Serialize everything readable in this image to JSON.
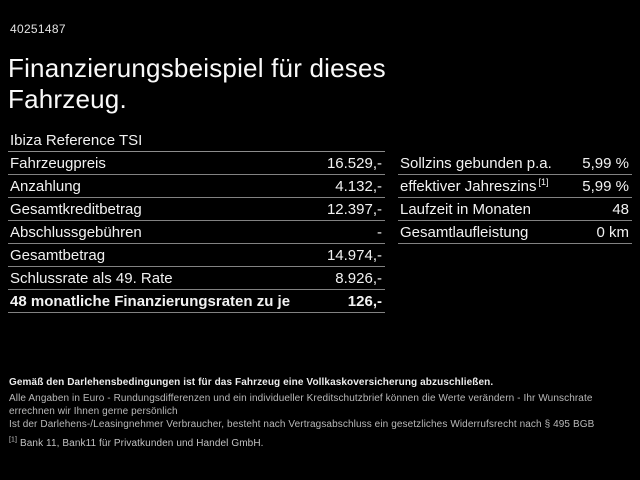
{
  "header": {
    "reference_number": "40251487",
    "title_line1": "Finanzierungsbeispiel für dieses",
    "title_line2": "Fahrzeug."
  },
  "left_table": {
    "header": "Ibiza Reference TSI",
    "rows": [
      {
        "label": "Fahrzeugpreis",
        "value": "16.529,-",
        "bold": false
      },
      {
        "label": "Anzahlung",
        "value": "4.132,-",
        "bold": false
      },
      {
        "label": "Gesamtkreditbetrag",
        "value": "12.397,-",
        "bold": false
      },
      {
        "label": "Abschlussgebühren",
        "value": "-",
        "bold": false
      },
      {
        "label": "Gesamtbetrag",
        "value": "14.974,-",
        "bold": false
      },
      {
        "label": "Schlussrate als 49. Rate",
        "value": "8.926,-",
        "bold": false
      },
      {
        "label": "48 monatliche Finanzierungsraten zu je",
        "value": "126,-",
        "bold": true
      }
    ]
  },
  "right_table": {
    "rows": [
      {
        "label": "Sollzins gebunden p.a.",
        "value": "5,99 %",
        "bold": false
      },
      {
        "label": "effektiver Jahreszins",
        "sup": "[1]",
        "value": "5,99 %",
        "bold": false
      },
      {
        "label": "Laufzeit in Monaten",
        "value": "48",
        "bold": false
      },
      {
        "label": "Gesamtlaufleistung",
        "value": "0 km",
        "bold": false
      }
    ]
  },
  "footer": {
    "bold_line": "Gemäß den Darlehensbedingungen ist für das Fahrzeug eine Vollkaskoversicherung abzuschließen.",
    "line2": "Alle Angaben in Euro - Rundungsdifferenzen und ein individueller Kreditschutzbrief können die Werte verändern - Ihr Wunschrate errechnen wir Ihnen gerne persönlich",
    "line3": "Ist der Darlehens-/Leasingnehmer Verbraucher, besteht nach Vertragsabschluss ein gesetzliches Widerrufsrecht nach § 495 BGB",
    "footnote_marker": "[1]",
    "footnote_text": "Bank 11, Bank11 für Privatkunden und Handel GmbH."
  },
  "colors": {
    "background": "#000000",
    "text": "#f2f2f2",
    "divider": "#828282",
    "muted_text": "#b9b9b9"
  }
}
